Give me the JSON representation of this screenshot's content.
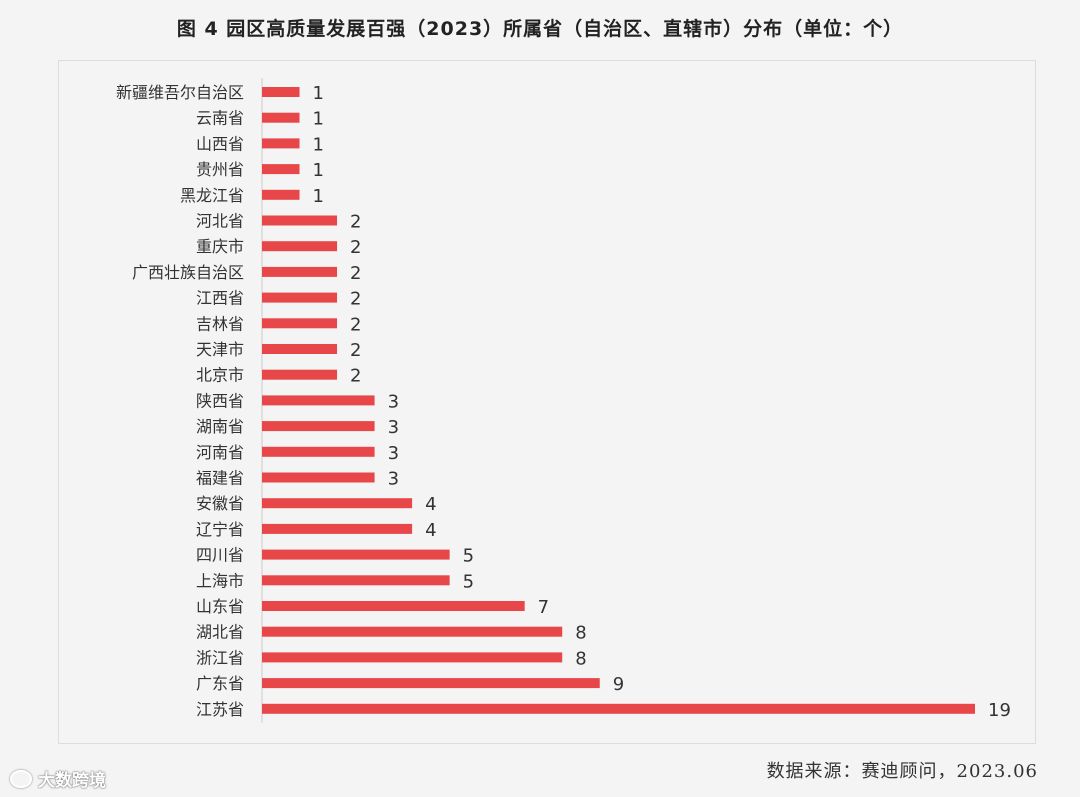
{
  "chart_data": {
    "type": "bar",
    "orientation": "horizontal",
    "title": "图 4 园区高质量发展百强（2023）所属省（自治区、直辖市）分布（单位：个）",
    "categories": [
      "新疆维吾尔自治区",
      "云南省",
      "山西省",
      "贵州省",
      "黑龙江省",
      "河北省",
      "重庆市",
      "广西壮族自治区",
      "江西省",
      "吉林省",
      "天津市",
      "北京市",
      "陕西省",
      "湖南省",
      "河南省",
      "福建省",
      "安徽省",
      "辽宁省",
      "四川省",
      "上海市",
      "山东省",
      "湖北省",
      "浙江省",
      "广东省",
      "江苏省"
    ],
    "values": [
      1,
      1,
      1,
      1,
      1,
      2,
      2,
      2,
      2,
      2,
      2,
      2,
      3,
      3,
      3,
      3,
      4,
      4,
      5,
      5,
      7,
      8,
      8,
      9,
      19
    ],
    "xlim": [
      0,
      19
    ],
    "bar_color": "#e8474a",
    "grid": false,
    "legend": "none"
  },
  "source": "数据来源：赛迪顾问，2023.06",
  "brand": {
    "icon": "weibo-icon",
    "text": "大数跨境"
  }
}
